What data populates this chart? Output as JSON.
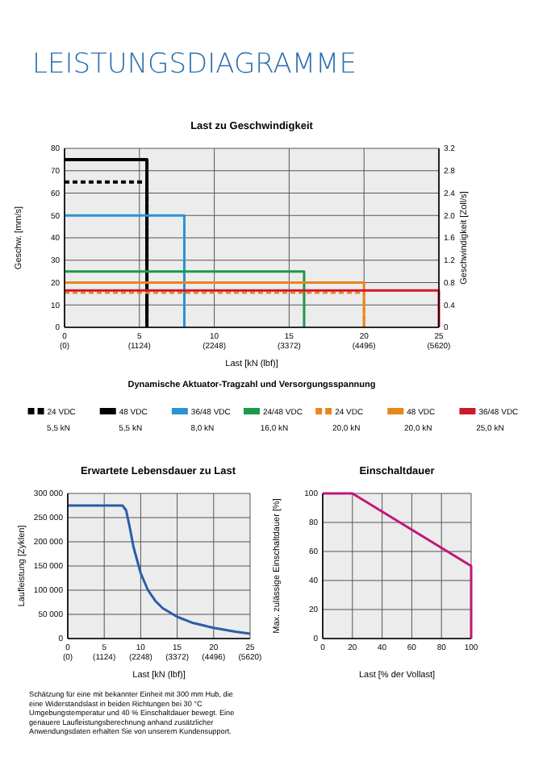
{
  "chart_data": [
    {
      "type": "line",
      "title": "LEISTUNGSDIAGRAMME",
      "subtitle": "Last zu Geschwindigkeit",
      "xlabel": "Last [kN (lbf)]",
      "ylabel": "Geschw. [mm/s]",
      "y2label": "Geschwindigkeit [Zoll/s]",
      "legend_title": "Dynamische Aktuator-Tragzahl und Versorgungsspannung",
      "legend": "bottom",
      "grid": true,
      "xlim": [
        0,
        25
      ],
      "xticks": [
        0,
        5,
        10,
        15,
        20,
        25
      ],
      "x2lim": [
        0,
        5620
      ],
      "x2ticks": [
        {
          "value": 0,
          "label": "(0)"
        },
        {
          "value": 1124,
          "label": "(1124)"
        },
        {
          "value": 2248,
          "label": "(2248)"
        },
        {
          "value": 3372,
          "label": "(3372)"
        },
        {
          "value": 4496,
          "label": "(4496)"
        },
        {
          "value": 5620,
          "label": "(5620)"
        }
      ],
      "ylim": [
        0,
        80
      ],
      "yticks": [
        0,
        10,
        20,
        30,
        40,
        50,
        60,
        70,
        80
      ],
      "y2lim": [
        0,
        3.2
      ],
      "y2ticks": [
        {
          "value": 0,
          "label": "0"
        },
        {
          "value": 0.4,
          "label": "0.4"
        },
        {
          "value": 0.8,
          "label": "0.8"
        },
        {
          "value": 1.2,
          "label": "1.2"
        },
        {
          "value": 1.6,
          "label": "1.6"
        },
        {
          "value": 2,
          "label": "2.0"
        },
        {
          "value": 2.4,
          "label": "2.4"
        },
        {
          "value": 2.8,
          "label": "2.8"
        },
        {
          "value": 3.2,
          "label": "3.2"
        }
      ],
      "series": [
        {
          "name": "24 VDC",
          "color": "#000000",
          "line_style": "dashed",
          "x": [
            0,
            5.5,
            5.5
          ],
          "values": [
            65,
            65,
            0
          ]
        },
        {
          "name": "48 VDC",
          "color": "#000000",
          "x": [
            0,
            5.5,
            5.5
          ],
          "values": [
            75,
            75,
            0
          ]
        },
        {
          "name": "36/48 VDC",
          "color": "#2a93d5",
          "x": [
            0,
            8,
            8
          ],
          "values": [
            50,
            50,
            0
          ]
        },
        {
          "name": "24/48 VDC",
          "color": "#1a9a4a",
          "x": [
            0,
            16,
            16
          ],
          "values": [
            25,
            25,
            0
          ]
        },
        {
          "name": "24 VDC",
          "color": "#e8861c",
          "line_style": "dashed",
          "x": [
            0,
            20,
            20
          ],
          "values": [
            15.5,
            15.5,
            0
          ]
        },
        {
          "name": "48 VDC",
          "color": "#e8861c",
          "x": [
            0,
            20,
            20
          ],
          "values": [
            20,
            20,
            0
          ]
        },
        {
          "name": "36/48 VDC",
          "color": "#d0182a",
          "x": [
            0,
            25,
            25
          ],
          "values": [
            16.5,
            16.5,
            0
          ]
        }
      ],
      "annotations": [
        "5,5 kN",
        "5,5 kN",
        "8,0 kN",
        "16,0 kN",
        "20,0 kN",
        "20,0 kN",
        "25,0 kN"
      ]
    },
    {
      "type": "line",
      "title": "Erwartete Lebensdauer zu Last",
      "xlabel": "Last [kN (lbf)]",
      "ylabel": "Laufleistung [Zyklen]",
      "grid": true,
      "xlim": [
        0,
        25
      ],
      "xticks": [
        0,
        5,
        10,
        15,
        20,
        25
      ],
      "x2lim": [
        0,
        5620
      ],
      "x2ticks": [
        {
          "value": 0,
          "label": "(0)"
        },
        {
          "value": 1124,
          "label": "(1124)"
        },
        {
          "value": 2248,
          "label": "(2248)"
        },
        {
          "value": 3372,
          "label": "(3372)"
        },
        {
          "value": 4496,
          "label": "(4496)"
        },
        {
          "value": 5620,
          "label": "(5620)"
        }
      ],
      "ylim": [
        0,
        300000
      ],
      "yticks": [
        {
          "value": 0,
          "label": "0"
        },
        {
          "value": 50000,
          "label": "50 000"
        },
        {
          "value": 100000,
          "label": "100 000"
        },
        {
          "value": 150000,
          "label": "150 000"
        },
        {
          "value": 200000,
          "label": "200 000"
        },
        {
          "value": 250000,
          "label": "250 000"
        },
        {
          "value": 300000,
          "label": "300 000"
        }
      ],
      "series": [
        {
          "color": "#2b5ca8",
          "x": [
            0,
            7.5,
            8,
            8.5,
            9,
            10,
            11,
            12,
            13,
            15,
            17,
            20,
            23,
            25
          ],
          "values": [
            275000,
            275000,
            265000,
            230000,
            190000,
            135000,
            100000,
            78000,
            63000,
            45000,
            33000,
            22000,
            14000,
            10000
          ]
        }
      ],
      "annotations": [
        "Schätzung für eine mit bekannter Einheit mit 300 mm Hub, die eine Widerstandslast in beiden Richtungen bei 30 °C Umgebungstemperatur und 40 % Einschaltdauer bewegt. Eine genauere Laufleistungsberechnung anhand zusätzlicher Anwendungsdaten erhalten Sie von unserem Kundensupport."
      ]
    },
    {
      "type": "line",
      "title": "Einschaltdauer",
      "xlabel": "Last [% der Vollast]",
      "ylabel": "Max. zulässige Einschaltdauer [%]",
      "grid": true,
      "xlim": [
        0,
        100
      ],
      "xticks": [
        0,
        20,
        40,
        60,
        80,
        100
      ],
      "ylim": [
        0,
        100
      ],
      "yticks": [
        0,
        20,
        40,
        60,
        80,
        100
      ],
      "series": [
        {
          "color": "#c0187a",
          "x": [
            0,
            20,
            100,
            100
          ],
          "values": [
            100,
            100,
            50,
            0
          ]
        }
      ]
    }
  ]
}
